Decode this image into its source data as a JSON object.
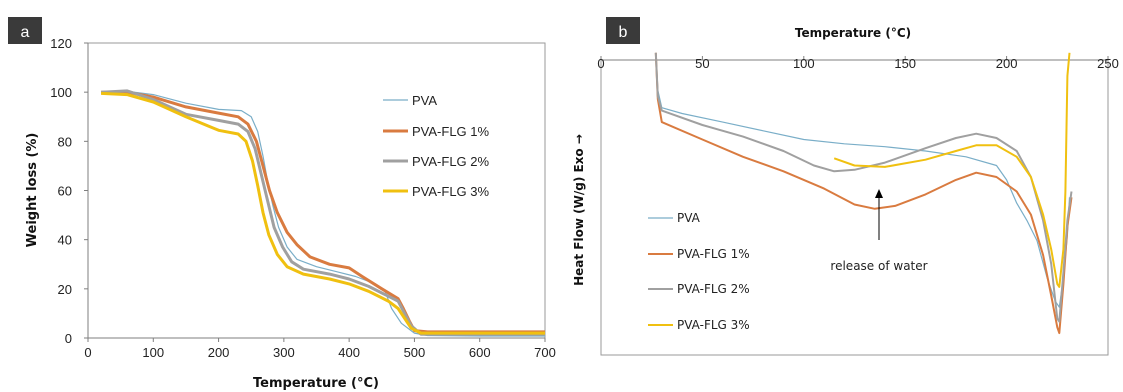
{
  "chart_data": [
    {
      "panel": "a",
      "type": "line",
      "xlabel": "Temperature (°C)",
      "ylabel": "Weight loss (%)",
      "xlim": [
        0,
        700
      ],
      "ylim": [
        0,
        120
      ],
      "xticks": [
        0,
        100,
        200,
        300,
        400,
        500,
        600,
        700
      ],
      "xtick_labels": [
        "0",
        "100",
        "200",
        "300",
        "400",
        "500",
        "600",
        "700"
      ],
      "yticks": [
        0,
        20,
        40,
        60,
        80,
        100,
        120
      ],
      "ytick_labels": [
        "0",
        "20",
        "40",
        "60",
        "80",
        "100",
        "120"
      ],
      "grid": false,
      "legend_position": "right",
      "series": [
        {
          "name": "PVA",
          "color": "#7aaec8",
          "width": 1.2,
          "points": [
            [
              20,
              100
            ],
            [
              60,
              100.3
            ],
            [
              100,
              99
            ],
            [
              150,
              95.5
            ],
            [
              200,
              93
            ],
            [
              235,
              92.5
            ],
            [
              250,
              90
            ],
            [
              260,
              84
            ],
            [
              268,
              74
            ],
            [
              275,
              64
            ],
            [
              283,
              54
            ],
            [
              292,
              45
            ],
            [
              305,
              37
            ],
            [
              320,
              32
            ],
            [
              350,
              29
            ],
            [
              380,
              27
            ],
            [
              410,
              25
            ],
            [
              440,
              22
            ],
            [
              455,
              19
            ],
            [
              465,
              12
            ],
            [
              480,
              6
            ],
            [
              500,
              2
            ],
            [
              520,
              1
            ],
            [
              600,
              0.8
            ],
            [
              700,
              0.8
            ]
          ]
        },
        {
          "name": "PVA-FLG 1%",
          "color": "#d97b40",
          "width": 3,
          "points": [
            [
              20,
              100
            ],
            [
              60,
              100
            ],
            [
              100,
              98
            ],
            [
              150,
              94
            ],
            [
              200,
              91.5
            ],
            [
              230,
              90
            ],
            [
              245,
              87
            ],
            [
              258,
              80
            ],
            [
              268,
              70
            ],
            [
              278,
              60
            ],
            [
              290,
              51
            ],
            [
              305,
              43
            ],
            [
              320,
              38
            ],
            [
              340,
              33
            ],
            [
              370,
              30
            ],
            [
              400,
              28.5
            ],
            [
              420,
              25
            ],
            [
              450,
              20
            ],
            [
              475,
              16
            ],
            [
              483,
              12
            ],
            [
              492,
              7
            ],
            [
              500,
              3
            ],
            [
              520,
              2.5
            ],
            [
              600,
              2.5
            ],
            [
              700,
              2.5
            ]
          ]
        },
        {
          "name": "PVA-FLG 2%",
          "color": "#a0a0a0",
          "width": 3,
          "points": [
            [
              20,
              100
            ],
            [
              60,
              100.5
            ],
            [
              100,
              97
            ],
            [
              150,
              91
            ],
            [
              200,
              88.5
            ],
            [
              230,
              87
            ],
            [
              245,
              84
            ],
            [
              256,
              77
            ],
            [
              265,
              67
            ],
            [
              275,
              56
            ],
            [
              285,
              45
            ],
            [
              298,
              37
            ],
            [
              312,
              31
            ],
            [
              330,
              28
            ],
            [
              370,
              26
            ],
            [
              400,
              24
            ],
            [
              430,
              21
            ],
            [
              460,
              17
            ],
            [
              475,
              15
            ],
            [
              485,
              10
            ],
            [
              495,
              5
            ],
            [
              510,
              1.5
            ],
            [
              600,
              1.5
            ],
            [
              700,
              1.5
            ]
          ]
        },
        {
          "name": "PVA-FLG 3%",
          "color": "#f0c010",
          "width": 3,
          "points": [
            [
              20,
              99.5
            ],
            [
              60,
              99
            ],
            [
              100,
              96
            ],
            [
              150,
              90
            ],
            [
              200,
              84.5
            ],
            [
              230,
              83
            ],
            [
              242,
              80
            ],
            [
              252,
              72
            ],
            [
              260,
              62
            ],
            [
              268,
              51
            ],
            [
              277,
              42
            ],
            [
              290,
              34
            ],
            [
              305,
              29
            ],
            [
              330,
              26
            ],
            [
              370,
              24
            ],
            [
              400,
              22
            ],
            [
              430,
              19
            ],
            [
              460,
              15
            ],
            [
              475,
              12
            ],
            [
              485,
              8
            ],
            [
              495,
              4
            ],
            [
              510,
              2
            ],
            [
              600,
              2
            ],
            [
              700,
              2
            ]
          ]
        }
      ]
    },
    {
      "panel": "b",
      "type": "line",
      "xlabel": "Temperature (°C)",
      "ylabel": "Heat Flow (W/g)  Exo →",
      "xlim": [
        0,
        250
      ],
      "ylim": [
        0,
        100
      ],
      "xticks": [
        0,
        50,
        100,
        150,
        200,
        250
      ],
      "xtick_labels": [
        "0",
        "50",
        "100",
        "150",
        "200",
        "250"
      ],
      "y_values_shown": false,
      "grid": false,
      "legend_position": "bottom-left",
      "annotation": "release of water",
      "series": [
        {
          "name": "PVA",
          "color": "#7aaec8",
          "width": 1.2,
          "points": [
            [
              27,
              98
            ],
            [
              28,
              85
            ],
            [
              30,
              79
            ],
            [
              40,
              77
            ],
            [
              60,
              74
            ],
            [
              80,
              71
            ],
            [
              100,
              68
            ],
            [
              120,
              66.5
            ],
            [
              140,
              65.5
            ],
            [
              160,
              64
            ],
            [
              180,
              62
            ],
            [
              195,
              59
            ],
            [
              200,
              54
            ],
            [
              205,
              46
            ],
            [
              210,
              40
            ],
            [
              215,
              33
            ],
            [
              220,
              20
            ],
            [
              224,
              12
            ],
            [
              226,
              10
            ],
            [
              228,
              20
            ],
            [
              230,
              35
            ],
            [
              231,
              48
            ]
          ]
        },
        {
          "name": "PVA-FLG 1%",
          "color": "#d97b40",
          "width": 2,
          "points": [
            [
              27,
              98
            ],
            [
              28,
              82
            ],
            [
              30,
              74
            ],
            [
              50,
              68
            ],
            [
              70,
              62
            ],
            [
              90,
              57
            ],
            [
              110,
              51
            ],
            [
              125,
              45.5
            ],
            [
              135,
              44
            ],
            [
              145,
              45
            ],
            [
              160,
              49
            ],
            [
              175,
              54
            ],
            [
              185,
              56.5
            ],
            [
              195,
              55
            ],
            [
              205,
              50
            ],
            [
              212,
              42
            ],
            [
              218,
              28
            ],
            [
              222,
              14
            ],
            [
              225,
              3
            ],
            [
              226,
              1
            ],
            [
              228,
              18
            ],
            [
              230,
              38
            ],
            [
              232,
              48
            ]
          ]
        },
        {
          "name": "PVA-FLG 2%",
          "color": "#a0a0a0",
          "width": 2,
          "points": [
            [
              27,
              98
            ],
            [
              28,
              83
            ],
            [
              30,
              78
            ],
            [
              50,
              73
            ],
            [
              70,
              69
            ],
            [
              90,
              64
            ],
            [
              105,
              59
            ],
            [
              115,
              57
            ],
            [
              125,
              57.5
            ],
            [
              140,
              60
            ],
            [
              160,
              65
            ],
            [
              175,
              68.5
            ],
            [
              185,
              70
            ],
            [
              195,
              68.5
            ],
            [
              205,
              64
            ],
            [
              212,
              55
            ],
            [
              218,
              40
            ],
            [
              222,
              25
            ],
            [
              225,
              6
            ],
            [
              226,
              5
            ],
            [
              228,
              22
            ],
            [
              230,
              40
            ],
            [
              232,
              50
            ]
          ]
        },
        {
          "name": "PVA-FLG 3%",
          "color": "#f0c010",
          "width": 2,
          "points": [
            [
              115,
              61.5
            ],
            [
              125,
              59
            ],
            [
              140,
              58.5
            ],
            [
              160,
              61
            ],
            [
              175,
              64
            ],
            [
              185,
              66
            ],
            [
              195,
              66
            ],
            [
              205,
              62
            ],
            [
              212,
              55
            ],
            [
              218,
              42
            ],
            [
              222,
              30
            ],
            [
              225,
              18
            ],
            [
              226,
              17
            ],
            [
              228,
              30
            ],
            [
              229,
              50
            ],
            [
              230,
              90
            ],
            [
              231,
              98
            ]
          ]
        }
      ]
    }
  ],
  "badges": {
    "a": "a",
    "b": "b"
  },
  "colors": {
    "badge": "#3a3a3a",
    "axis": "#7f7f7f",
    "border": "#9a9a9a"
  }
}
